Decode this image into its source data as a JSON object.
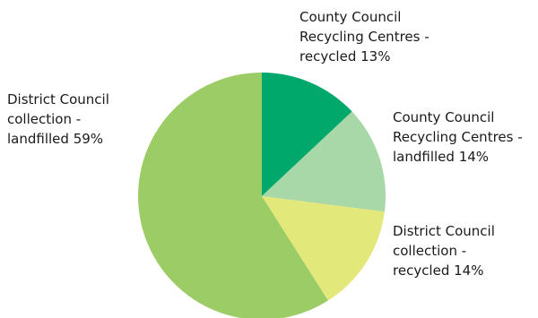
{
  "chart_data": {
    "type": "pie",
    "title": "",
    "start_angle_deg": 0,
    "direction": "clockwise",
    "slices": [
      {
        "label_lines": [
          "County Council",
          "Recycling Centres -",
          "recycled 13%"
        ],
        "value": 13,
        "color": "#00a86b"
      },
      {
        "label_lines": [
          "County Council",
          "Recycling Centres -",
          "landfilled 14%"
        ],
        "value": 14,
        "color": "#a8d8a8"
      },
      {
        "label_lines": [
          "District Council",
          "collection -",
          "recycled 14%"
        ],
        "value": 14,
        "color": "#e3e87a"
      },
      {
        "label_lines": [
          "District Council",
          "collection -",
          "landfilled 59%"
        ],
        "value": 59,
        "color": "#9ccc65"
      }
    ]
  }
}
